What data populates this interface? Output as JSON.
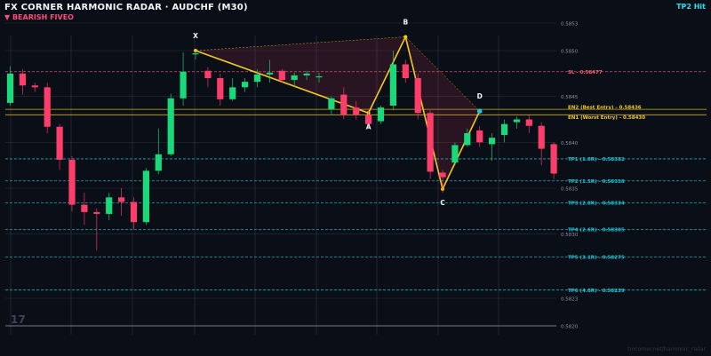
{
  "header": {
    "title": "FX CORNER HARMONIC RADAR  ·  AUDCHF (M30)",
    "subtitle": "▼ BEARISH  FIVEO",
    "status": "TP2 Hit",
    "footer": "tmcorner.net/harmonic_radar",
    "watermark": "17"
  },
  "colors": {
    "background": "#0a0e17",
    "bull": "#19d97a",
    "bear": "#ff3d6b",
    "pattern": "#f2c81e",
    "sl": "#ff5c75",
    "tp": "#1ac8d8",
    "entry": "#f2c81e",
    "grid": "#4d5566"
  },
  "chart_data": {
    "type": "candlestick",
    "ylim": [
      0.582,
      0.5856
    ],
    "y_ticks": [
      "0.5853",
      "0.5850",
      "0.5845",
      "0.5840",
      "0.5835",
      "0.5830",
      "0.5823",
      "0.5820"
    ],
    "candles": [
      [
        0.58443,
        0.58475,
        0.5844,
        0.58483
      ],
      [
        0.58475,
        0.58462,
        0.58452,
        0.5848
      ],
      [
        0.58462,
        0.5846,
        0.58455,
        0.58465
      ],
      [
        0.5846,
        0.58417,
        0.5841,
        0.58465
      ],
      [
        0.58417,
        0.58381,
        0.5837,
        0.5842
      ],
      [
        0.58381,
        0.58332,
        0.58325,
        0.58385
      ],
      [
        0.58332,
        0.58324,
        0.5831,
        0.58345
      ],
      [
        0.58324,
        0.58322,
        0.58282,
        0.58328
      ],
      [
        0.58322,
        0.5834,
        0.58315,
        0.58345
      ],
      [
        0.5834,
        0.58335,
        0.5832,
        0.5835
      ],
      [
        0.58335,
        0.58313,
        0.58305,
        0.5834
      ],
      [
        0.58313,
        0.58369,
        0.5831,
        0.58372
      ],
      [
        0.58369,
        0.58387,
        0.58365,
        0.58415
      ],
      [
        0.58387,
        0.58448,
        0.58385,
        0.58453
      ],
      [
        0.58448,
        0.58477,
        0.5844,
        0.58498
      ],
      [
        0.58497,
        0.58497,
        0.5849,
        0.585
      ],
      [
        0.58478,
        0.5847,
        0.5846,
        0.58482
      ],
      [
        0.5847,
        0.58447,
        0.5844,
        0.58475
      ],
      [
        0.58447,
        0.5846,
        0.58445,
        0.5847
      ],
      [
        0.5846,
        0.58466,
        0.58455,
        0.5847
      ],
      [
        0.58466,
        0.58474,
        0.5846,
        0.5848
      ],
      [
        0.58474,
        0.58476,
        0.58465,
        0.5849
      ],
      [
        0.58478,
        0.58468,
        0.58465,
        0.5848
      ],
      [
        0.58468,
        0.58473,
        0.5846,
        0.58476
      ],
      [
        0.58473,
        0.58475,
        0.58468,
        0.58478
      ],
      [
        0.58472,
        0.58472,
        0.58465,
        0.58476
      ],
      [
        0.58436,
        0.58448,
        0.5843,
        0.5845
      ],
      [
        0.58452,
        0.5843,
        0.58425,
        0.5846
      ],
      [
        0.58438,
        0.5843,
        0.58425,
        0.58445
      ],
      [
        0.5843,
        0.5842,
        0.58415,
        0.58435
      ],
      [
        0.58423,
        0.58438,
        0.5842,
        0.5844
      ],
      [
        0.5844,
        0.58485,
        0.58435,
        0.585
      ],
      [
        0.58485,
        0.5847,
        0.58465,
        0.5849
      ],
      [
        0.5847,
        0.58432,
        0.58425,
        0.58475
      ],
      [
        0.58432,
        0.58368,
        0.5836,
        0.58435
      ],
      [
        0.58367,
        0.58362,
        0.58345,
        0.5837
      ],
      [
        0.58378,
        0.58397,
        0.58375,
        0.584
      ],
      [
        0.58397,
        0.5841,
        0.58395,
        0.58415
      ],
      [
        0.58413,
        0.584,
        0.58395,
        0.58418
      ],
      [
        0.58398,
        0.58405,
        0.5838,
        0.5841
      ],
      [
        0.58408,
        0.5842,
        0.584,
        0.58425
      ],
      [
        0.58422,
        0.58425,
        0.58415,
        0.58428
      ],
      [
        0.58425,
        0.58418,
        0.5841,
        0.5843
      ],
      [
        0.58418,
        0.58393,
        0.58375,
        0.58422
      ],
      [
        0.58398,
        0.58366,
        0.5836,
        0.584
      ]
    ],
    "pattern": {
      "points": [
        {
          "label": "X",
          "index": 15,
          "price": 0.585
        },
        {
          "label": "A",
          "index": 29,
          "price": 0.58432
        },
        {
          "label": "B",
          "index": 32,
          "price": 0.58515
        },
        {
          "label": "C",
          "index": 35,
          "price": 0.58349
        },
        {
          "label": "D",
          "index": 38,
          "price": 0.58434
        }
      ]
    },
    "levels": [
      {
        "label": "SL - 0.58477",
        "price": 0.58477,
        "kind": "sl"
      },
      {
        "label": "EN2 (Best Entry) - 0.58436",
        "price": 0.58436,
        "kind": "entry"
      },
      {
        "label": "EN1 (Worst Entry) - 0.58430",
        "price": 0.5843,
        "kind": "entry"
      },
      {
        "label": "TP1 (1.0R) - 0.58382",
        "price": 0.58382,
        "kind": "tp"
      },
      {
        "label": "TP2 (1.5R) - 0.58358",
        "price": 0.58358,
        "kind": "tp"
      },
      {
        "label": "TP3 (2.0R) - 0.58334",
        "price": 0.58334,
        "kind": "tp"
      },
      {
        "label": "TP4 (2.6R) - 0.58305",
        "price": 0.58305,
        "kind": "tp"
      },
      {
        "label": "TP5 (3.1R) - 0.58275",
        "price": 0.58275,
        "kind": "tp"
      },
      {
        "label": "TP6 (4.0R) - 0.58239",
        "price": 0.58239,
        "kind": "tp"
      }
    ]
  }
}
